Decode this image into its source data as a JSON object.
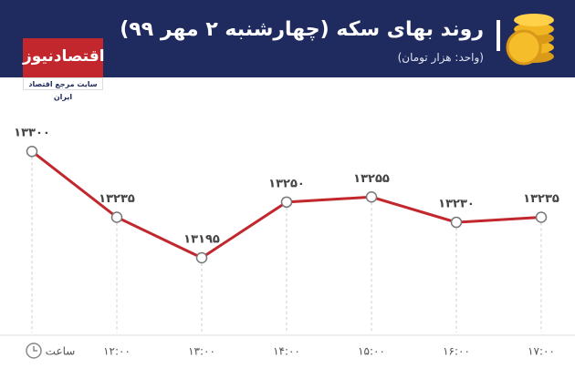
{
  "logo": {
    "name": "اقتصادنیوز",
    "tagline": "سایت مرجع اقتصاد ایران"
  },
  "chart_data": {
    "type": "line",
    "title": "روند بهای سکه (چهارشنبه ۲ مهر ۹۹)",
    "subtitle": "(واحد: هزار تومان)",
    "x_label": "ساعت",
    "categories": [
      null,
      "۱۲:۰۰",
      "۱۳:۰۰",
      "۱۴:۰۰",
      "۱۵:۰۰",
      "۱۶:۰۰",
      "۱۷:۰۰"
    ],
    "values": [
      13300,
      13235,
      13195,
      13250,
      13255,
      13230,
      13235
    ],
    "value_labels": [
      "۱۳۳۰۰",
      "۱۳۲۳۵",
      "۱۳۱۹۵",
      "۱۳۲۵۰",
      "۱۳۲۵۵",
      "۱۳۲۳۰",
      "۱۳۲۳۵"
    ],
    "color": "#c1272d",
    "ylim": [
      13150,
      13320
    ]
  }
}
